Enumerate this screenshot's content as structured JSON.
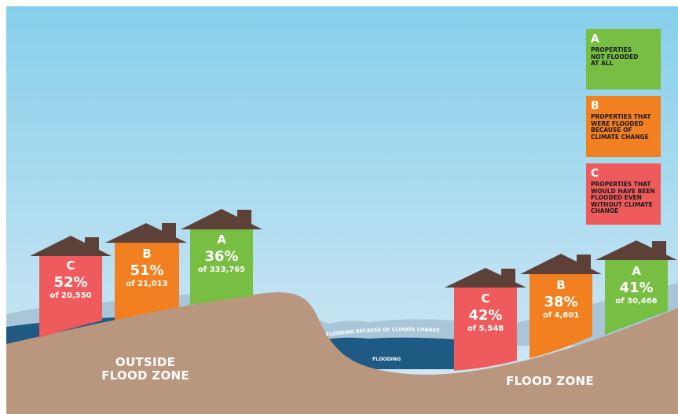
{
  "colors": {
    "sky_top": "#86cfeb",
    "sky_bottom": "#d4e9f4",
    "ground": "#b9977f",
    "water_dark": "#1f5a84",
    "water_light": "#a9c6d9",
    "roof": "#5d4038",
    "category_a": "#78be43",
    "category_b": "#f28020",
    "category_c": "#ef5b5d"
  },
  "legend": [
    {
      "letter": "A",
      "text": "PROPERTIES NOT FLOODED AT ALL",
      "color": "#78be43"
    },
    {
      "letter": "B",
      "text": "PROPERTIES THAT WERE FLOODED BECAUSE OF CLIMATE CHANGE",
      "color": "#f28020"
    },
    {
      "letter": "C",
      "text": "PROPERTIES THAT WOULD HAVE BEEN FLOODED EVEN WITHOUT CLIMATE CHANGE",
      "color": "#ef5b5d"
    }
  ],
  "outside_zone": {
    "label_line1": "OUTSIDE",
    "label_line2": "FLOOD ZONE",
    "houses": [
      {
        "letter": "C",
        "percent": "52%",
        "count": "of 20,550",
        "color": "#ef5b5d"
      },
      {
        "letter": "B",
        "percent": "51%",
        "count": "of 21,013",
        "color": "#f28020"
      },
      {
        "letter": "A",
        "percent": "36%",
        "count": "of 333,765",
        "color": "#78be43"
      }
    ]
  },
  "flood_zone": {
    "label": "FLOOD ZONE",
    "houses": [
      {
        "letter": "C",
        "percent": "42%",
        "count": "of 5,548",
        "color": "#ef5b5d"
      },
      {
        "letter": "B",
        "percent": "38%",
        "count": "of 4,601",
        "color": "#f28020"
      },
      {
        "letter": "A",
        "percent": "41%",
        "count": "of 30,466",
        "color": "#78be43"
      }
    ]
  },
  "water_labels": {
    "climate": "FLOODING BECAUSE OF CLIMATE CHANGE",
    "flooding": "FLOODING"
  }
}
